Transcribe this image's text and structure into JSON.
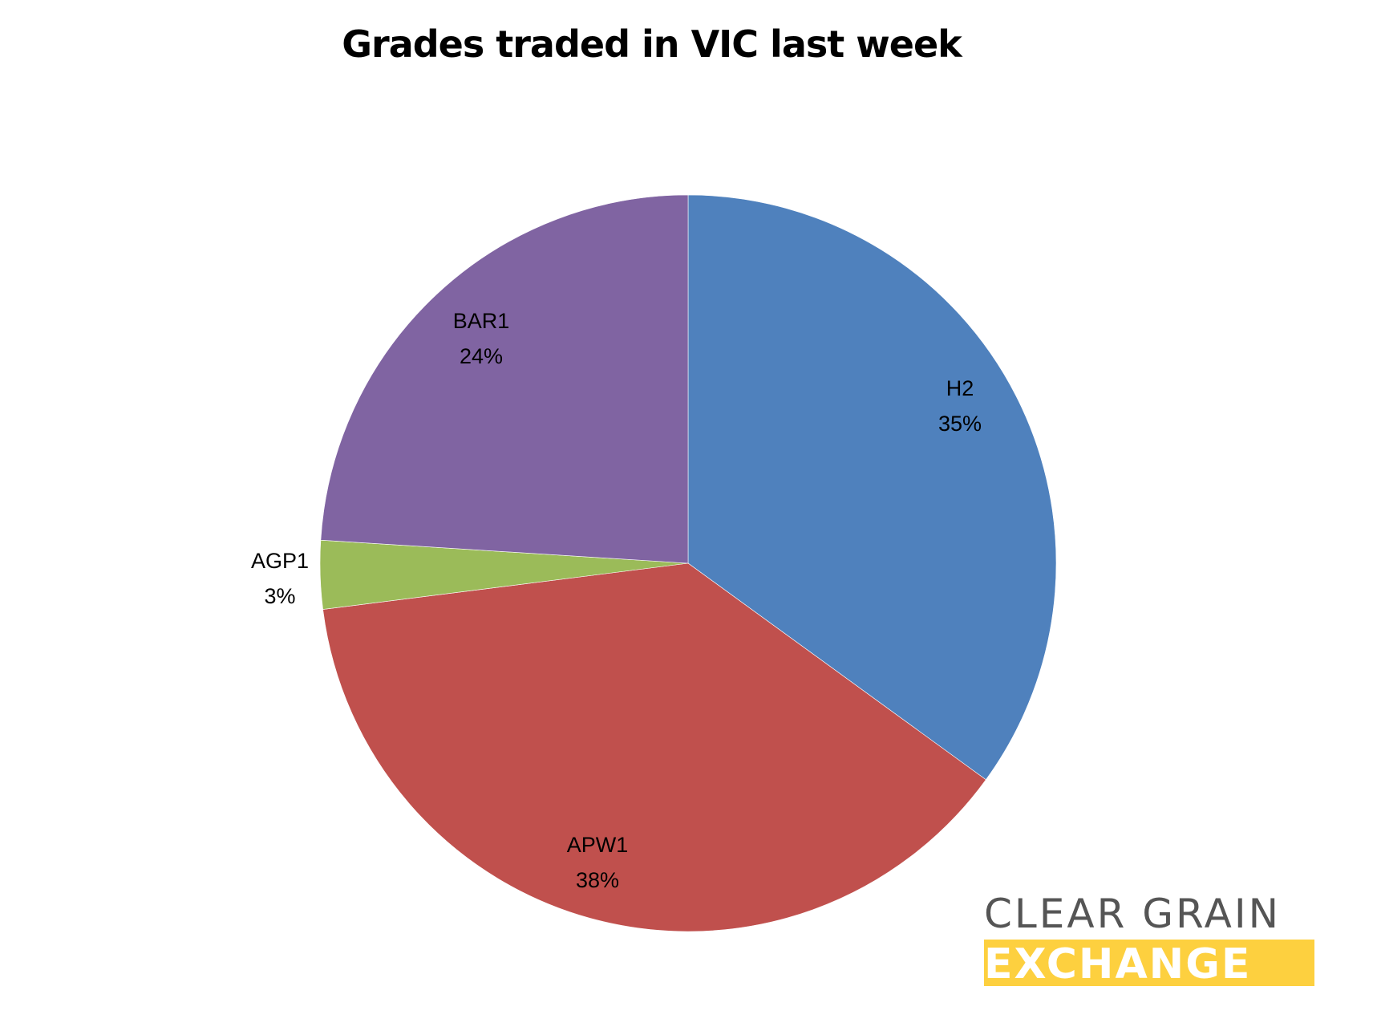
{
  "chart_data": {
    "type": "pie",
    "title": "Grades traded in VIC last week",
    "categories": [
      "H2",
      "APW1",
      "AGP1",
      "BAR1"
    ],
    "values": [
      35,
      38,
      3,
      24
    ],
    "unit": "%",
    "colors": [
      "#4f81bd",
      "#c0504d",
      "#9bbb59",
      "#8064a2"
    ],
    "start_angle_deg": 0,
    "direction": "clockwise",
    "labels": [
      {
        "name": "H2",
        "pct": "35%"
      },
      {
        "name": "APW1",
        "pct": "38%"
      },
      {
        "name": "AGP1",
        "pct": "3%"
      },
      {
        "name": "BAR1",
        "pct": "24%"
      }
    ],
    "legend": "none"
  },
  "logo": {
    "line1": "CLEAR GRAIN",
    "line2": "EXCHANGE",
    "text_color": "#555555",
    "accent": "#fdd03f"
  }
}
